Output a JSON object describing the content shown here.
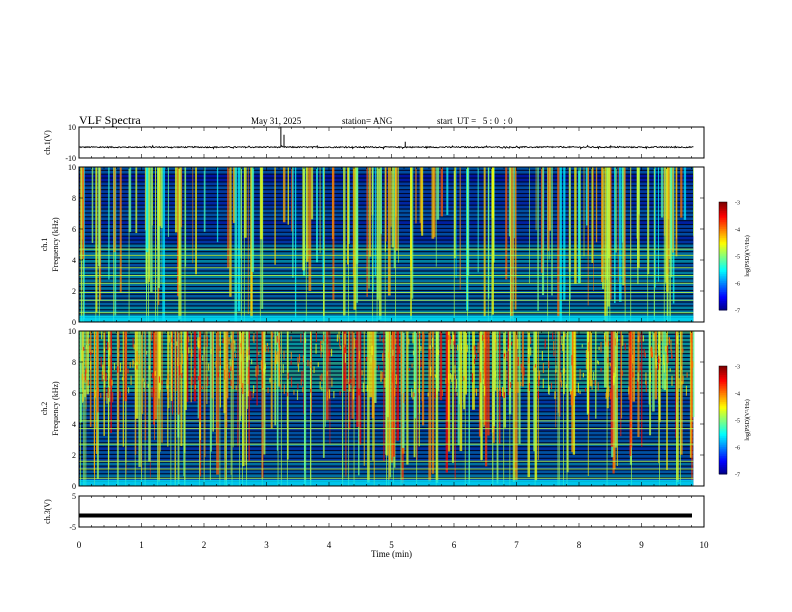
{
  "header": {
    "title": "VLF Spectra",
    "date": "May 31, 2025",
    "station": "station= ANG",
    "start_ut": "start  UT =   5 : 0  : 0"
  },
  "chart_data": [
    {
      "type": "line",
      "panel": "ch1-waveform",
      "ylabel": "ch.1(V)",
      "ylim": [
        -10,
        10
      ],
      "yticks": [
        "10",
        "-10"
      ],
      "baseline": -3,
      "noise_amplitude": 0.4,
      "spikes": [
        {
          "x": 3.23,
          "y": 10
        },
        {
          "x": 3.28,
          "y": 5
        },
        {
          "x": 5.22,
          "y": 0.5
        }
      ]
    },
    {
      "type": "heatmap",
      "panel": "ch1-spectrogram",
      "ylabel": "ch.1",
      "ylabel2": "Frequency  (kHz)",
      "ylim": [
        0,
        10
      ],
      "yticks": [
        "0",
        "2",
        "4",
        "6",
        "8",
        "10"
      ],
      "xlim": [
        0,
        9.83
      ],
      "persistent_lines_khz": [
        0.6,
        1.4,
        1.9,
        2.5,
        3.0,
        3.5,
        4.3,
        4.7
      ],
      "colorbar": {
        "label": "log(PSD)(V²/Hz)",
        "ticks": [
          "-3",
          "-4",
          "-5",
          "-6",
          "-7"
        ],
        "range": [
          -7,
          -3
        ]
      }
    },
    {
      "type": "heatmap",
      "panel": "ch2-spectrogram",
      "ylabel": "ch.2",
      "ylabel2": "Frequency  (kHz)",
      "ylim": [
        0,
        10
      ],
      "yticks": [
        "0",
        "2",
        "4",
        "6",
        "8",
        "10"
      ],
      "xlim": [
        0,
        9.83
      ],
      "persistent_lines_khz": [
        0.5,
        1.1,
        1.6,
        2.7,
        3.7,
        4.2
      ],
      "colorbar": {
        "label": "log(PSD)(V²/Hz)",
        "ticks": [
          "-3",
          "-4",
          "-5",
          "-6",
          "-7"
        ],
        "range": [
          -7,
          -3
        ]
      }
    },
    {
      "type": "line",
      "panel": "ch3-waveform",
      "ylabel": "ch.3(V)",
      "ylim": [
        -5,
        5
      ],
      "yticks": [
        "5",
        "-5"
      ],
      "baseline": -1.3
    }
  ],
  "x_axis": {
    "label": "Time  (min)",
    "range": [
      0,
      10
    ],
    "ticks": [
      "0",
      "1",
      "2",
      "3",
      "4",
      "5",
      "6",
      "7",
      "8",
      "9",
      "10"
    ]
  }
}
